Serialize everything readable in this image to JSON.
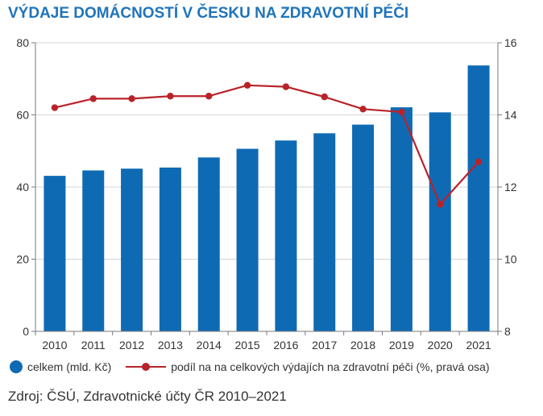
{
  "chart_data": {
    "type": "bar",
    "title": "VÝDAJE DOMÁCNOSTÍ V ČESKU NA ZDRAVOTNÍ PÉČI",
    "categories": [
      "2010",
      "2011",
      "2012",
      "2013",
      "2014",
      "2015",
      "2016",
      "2017",
      "2018",
      "2019",
      "2020",
      "2021"
    ],
    "series": [
      {
        "name": "celkem (mld. Kč)",
        "type": "bar",
        "axis": "left",
        "values": [
          43.1,
          44.6,
          45.1,
          45.4,
          48.2,
          50.6,
          52.9,
          54.9,
          57.3,
          62.1,
          60.7,
          73.7
        ]
      },
      {
        "name": "podíl na na celkových výdajích na zdravotní péči (%, pravá osa)",
        "type": "line",
        "axis": "right",
        "values": [
          14.2,
          14.45,
          14.45,
          14.52,
          14.52,
          14.82,
          14.78,
          14.5,
          14.16,
          14.08,
          11.52,
          12.7
        ]
      }
    ],
    "ylim": [
      0,
      80
    ],
    "y_ticks": [
      0,
      20,
      40,
      60,
      80
    ],
    "y2lim": [
      8,
      16
    ],
    "y2_ticks": [
      8,
      10,
      12,
      14,
      16
    ],
    "grid": "horizontal",
    "legend_position": "bottom",
    "colors": {
      "bar": "#0f6ab4",
      "line": "#b8232a",
      "title": "#1f74bb",
      "grid": "#d6d6d6",
      "axis": "#7a7a7a"
    }
  },
  "source": "Zdroj: ČSÚ, Zdravotnické účty ČR 2010–2021"
}
